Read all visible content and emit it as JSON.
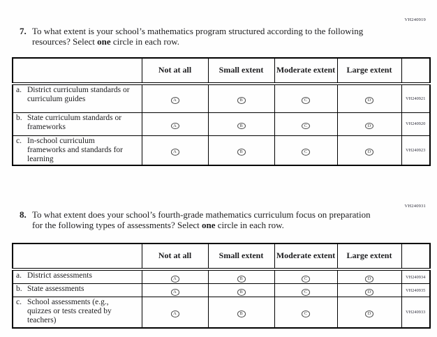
{
  "answer_options": [
    "A",
    "B",
    "C",
    "D"
  ],
  "q7": {
    "code": "VH240919",
    "number": "7.",
    "text1": "To what extent is your school’s mathematics program structured according to the following resources? Select ",
    "bold": "one",
    "text2": " circle in each row.",
    "headers": [
      "Not at all",
      "Small extent",
      "Moderate extent",
      "Large extent"
    ],
    "rows": [
      {
        "prefix": "a.",
        "label": "District curriculum standards or curriculum guides",
        "code": "VH240921"
      },
      {
        "prefix": "b.",
        "label": "State curriculum standards or frameworks",
        "code": "VH240920"
      },
      {
        "prefix": "c.",
        "label": "In-school curriculum frameworks and standards for learning",
        "code": "VH240923"
      }
    ]
  },
  "q8": {
    "code": "VH240931",
    "number": "8.",
    "text1": "To what extent does your school’s fourth-grade mathematics curriculum focus on preparation for the following types of assessments? Select ",
    "bold": "one",
    "text2": " circle in each row.",
    "headers": [
      "Not at all",
      "Small extent",
      "Moderate extent",
      "Large extent"
    ],
    "rows": [
      {
        "prefix": "a.",
        "label": "District assessments",
        "code": "VH240934"
      },
      {
        "prefix": "b.",
        "label": "State assessments",
        "code": "VH240935"
      },
      {
        "prefix": "c.",
        "label": "School assessments (e.g., quizzes or tests created by teachers)",
        "code": "VH240933"
      }
    ]
  }
}
